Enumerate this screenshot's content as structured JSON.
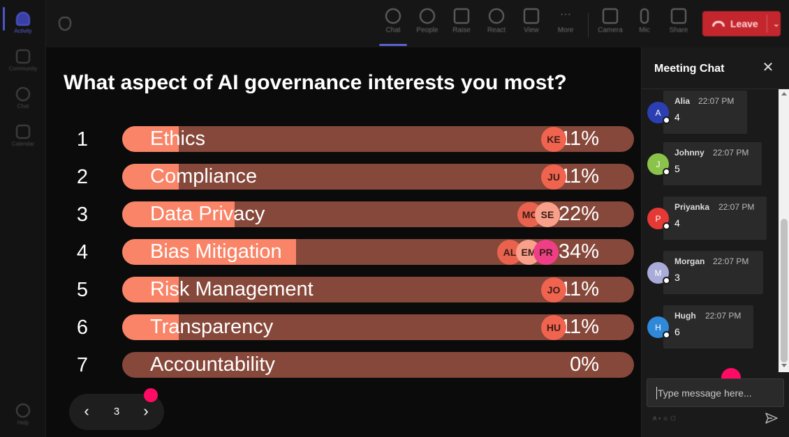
{
  "rail": {
    "items": [
      {
        "label": "Activity"
      },
      {
        "label": "Community"
      },
      {
        "label": "Chat"
      },
      {
        "label": "Calendar"
      },
      {
        "label": "Help"
      }
    ]
  },
  "toolbar": {
    "chat": "Chat",
    "people": "People",
    "raise": "Raise",
    "react": "React",
    "view": "View",
    "more": "More",
    "camera": "Camera",
    "mic": "Mic",
    "share": "Share",
    "leave": "Leave"
  },
  "poll": {
    "question": "What aspect of AI governance interests you most?",
    "page": "3",
    "accent_fill": "#f98467",
    "accent_track": "#86483a",
    "options": [
      {
        "num": "1",
        "label": "Ethics",
        "percent": 11,
        "pct_label": "11%",
        "voters": [
          {
            "initials": "KE",
            "color": "#f0634f"
          }
        ]
      },
      {
        "num": "2",
        "label": "Compliance",
        "percent": 11,
        "pct_label": "11%",
        "voters": [
          {
            "initials": "JU",
            "color": "#f0634f"
          }
        ]
      },
      {
        "num": "3",
        "label": "Data Privacy",
        "percent": 22,
        "pct_label": "22%",
        "voters": [
          {
            "initials": "MO",
            "color": "#e8624e"
          },
          {
            "initials": "SE",
            "color": "#f9a08a"
          }
        ]
      },
      {
        "num": "4",
        "label": "Bias Mitigation",
        "percent": 34,
        "pct_label": "34%",
        "voters": [
          {
            "initials": "AL",
            "color": "#e8624e"
          },
          {
            "initials": "EM",
            "color": "#f9a08a"
          },
          {
            "initials": "PR",
            "color": "#ee3f86"
          }
        ]
      },
      {
        "num": "5",
        "label": "Risk Management",
        "percent": 11,
        "pct_label": "11%",
        "voters": [
          {
            "initials": "JO",
            "color": "#f0634f"
          }
        ]
      },
      {
        "num": "6",
        "label": "Transparency",
        "percent": 11,
        "pct_label": "11%",
        "voters": [
          {
            "initials": "HU",
            "color": "#f0634f"
          }
        ]
      },
      {
        "num": "7",
        "label": "Accountability",
        "percent": 0,
        "pct_label": "0%",
        "voters": []
      }
    ]
  },
  "chat": {
    "title": "Meeting Chat",
    "input_placeholder": "Type message here...",
    "messages": [
      {
        "initial": "A",
        "name": "Alia",
        "time": "22:07 PM",
        "text": "4",
        "color": "#2b3fb3"
      },
      {
        "initial": "J",
        "name": "Johnny",
        "time": "22:07 PM",
        "text": "5",
        "color": "#8bc34a"
      },
      {
        "initial": "P",
        "name": "Priyanka",
        "time": "22:07 PM",
        "text": "4",
        "color": "#e53935"
      },
      {
        "initial": "M",
        "name": "Morgan",
        "time": "22:07 PM",
        "text": "3",
        "color": "#a9acd8"
      },
      {
        "initial": "H",
        "name": "Hugh",
        "time": "22:07 PM",
        "text": "6",
        "color": "#2f88d8"
      }
    ]
  }
}
